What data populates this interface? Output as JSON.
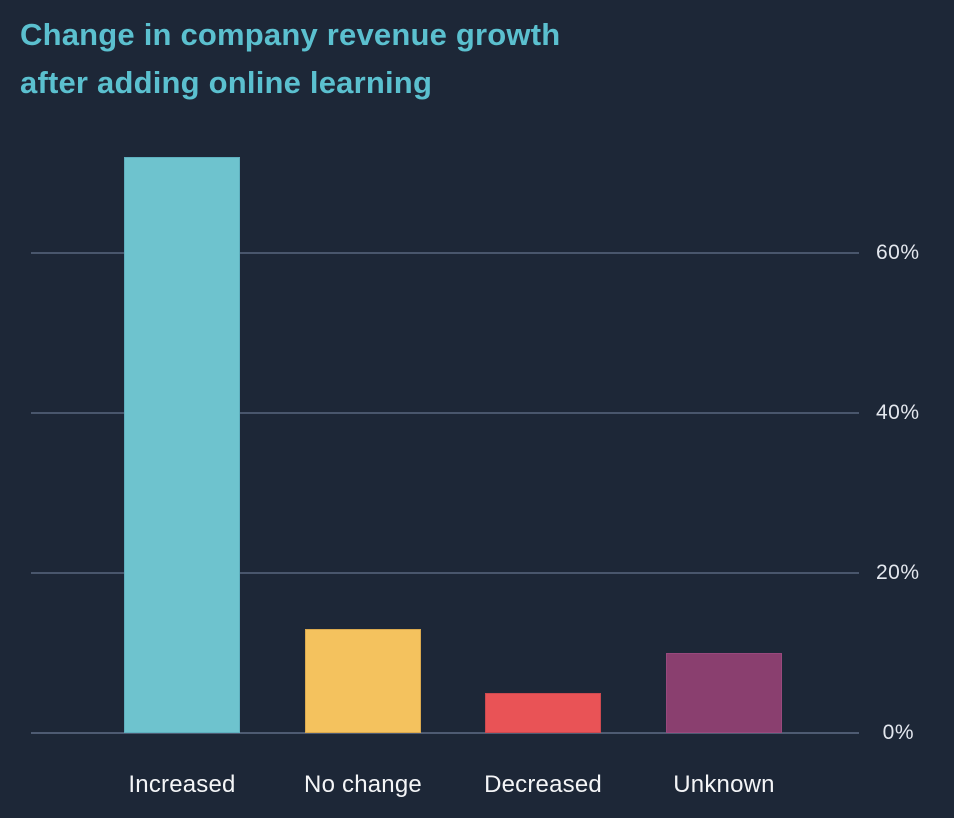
{
  "header": {
    "title_lines": [
      "Change in company revenue growth",
      "after adding online learning"
    ]
  },
  "colors": {
    "background": "#1d2737",
    "title": "#5bc0cf",
    "gridline": "#49566c",
    "axis_line": "#4e5b72",
    "tick_label": "#e3e7ee",
    "category_label": "#f4f5f7"
  },
  "chart_data": {
    "type": "bar",
    "title": "Change in company revenue growth after adding online learning",
    "categories": [
      "Increased",
      "No change",
      "Decreased",
      "Unknown"
    ],
    "values": [
      72,
      13,
      5,
      10
    ],
    "unit": "%",
    "bar_colors": [
      "#6ec3ce",
      "#f4c25e",
      "#e95356",
      "#8a3f6f"
    ],
    "bar_border_colors": [
      "#5fb0bf",
      "#daa94f",
      "#cc4a50",
      "#98497d"
    ],
    "xlabel": "",
    "ylabel": "",
    "ylim": [
      0,
      80
    ],
    "yticks": [
      {
        "value": 0,
        "label": "0%"
      },
      {
        "value": 20,
        "label": "20%"
      },
      {
        "value": 40,
        "label": "40%"
      },
      {
        "value": 60,
        "label": "60%"
      }
    ],
    "grid": "horizontal",
    "legend": "none",
    "tick_label_side": "right"
  }
}
